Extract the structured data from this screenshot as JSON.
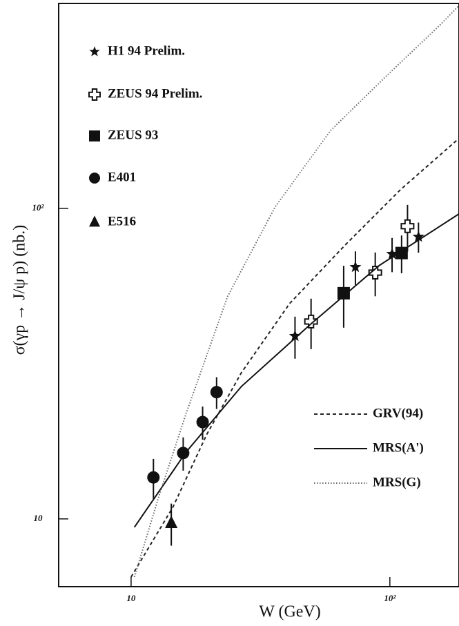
{
  "chart_data": {
    "type": "scatter",
    "x_label": "W (GeV)",
    "y_label": "σ(γp → J/ψ p) (nb.)",
    "log_x": true,
    "log_y": true,
    "xlim": [
      5.25,
      185
    ],
    "ylim": [
      6.05,
      457
    ],
    "xticks": [
      10,
      {
        "value": 100,
        "label": "10²"
      }
    ],
    "yticks": [
      10,
      {
        "value": 100,
        "label": "10²"
      }
    ],
    "series": [
      {
        "name": "H1 94 Prelim.",
        "marker": "star",
        "color": "#111111",
        "x": [
          43,
          73.6,
          102,
          129
        ],
        "values": [
          38.8,
          64.7,
          71.3,
          81
        ],
        "errors": [
          6,
          8,
          9,
          9
        ]
      },
      {
        "name": "ZEUS 94 Prelim.",
        "marker": "cross",
        "color": "#111111",
        "x": [
          49.6,
          87.8,
          117
        ],
        "values": [
          43.2,
          62.1,
          87.6
        ],
        "errors": [
          8,
          10,
          15
        ]
      },
      {
        "name": "ZEUS 93",
        "marker": "square",
        "color": "#111111",
        "x": [
          66.3,
          111
        ],
        "values": [
          53.3,
          71.8
        ],
        "errors": [
          12,
          10
        ]
      },
      {
        "name": "E401",
        "marker": "circle",
        "color": "#111111",
        "x": [
          12.2,
          15.9,
          18.9,
          21.4
        ],
        "values": [
          13.6,
          16.3,
          20.5,
          25.6
        ],
        "errors": [
          2,
          2,
          2.5,
          3
        ]
      },
      {
        "name": "E516",
        "marker": "triangle",
        "color": "#111111",
        "x": [
          14.3
        ],
        "values": [
          9.7
        ],
        "errors": [
          1.5
        ]
      },
      {
        "name": "GRV(94)",
        "dash": "5,4",
        "color": "#222222",
        "x": [
          10,
          14.5,
          19.6,
          26.7,
          41,
          67,
          110,
          185
        ],
        "values": [
          6.5,
          10.9,
          18.7,
          29.6,
          49.4,
          76,
          115,
          168
        ]
      },
      {
        "name": "MRS(A')",
        "dash": "none",
        "color": "#111111",
        "x": [
          10.3,
          16.3,
          26.7,
          49.3,
          91,
          185
        ],
        "values": [
          9.4,
          16.4,
          26.7,
          42.3,
          65.5,
          96
        ]
      },
      {
        "name": "MRS(G)",
        "dash": "1.5,2.5",
        "color": "#666666",
        "x": [
          10.3,
          12.8,
          16.3,
          23.6,
          36,
          59,
          97,
          158,
          185
        ],
        "values": [
          6.5,
          11.8,
          21.8,
          52,
          101,
          178,
          267,
          393,
          450
        ]
      }
    ]
  }
}
